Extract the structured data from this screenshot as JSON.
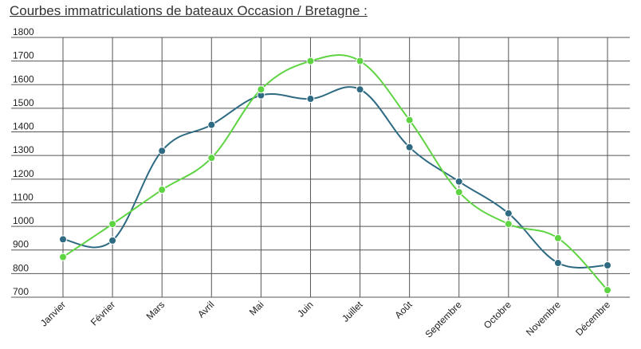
{
  "title": "Courbes immatriculations de bateaux Occasion / Bretagne :",
  "chart_data": {
    "type": "line",
    "title": "Courbes immatriculations de bateaux Occasion / Bretagne :",
    "xlabel": "",
    "ylabel": "",
    "categories": [
      "Janvier",
      "Février",
      "Mars",
      "Avril",
      "Mai",
      "Juin",
      "Juillet",
      "Août",
      "Septembre",
      "Octobre",
      "Novembre",
      "Décembre"
    ],
    "yticks": [
      700,
      800,
      900,
      1000,
      1100,
      1200,
      1300,
      1400,
      1500,
      1600,
      1700,
      1800
    ],
    "ylim": [
      700,
      1800
    ],
    "grid": true,
    "legend": "none",
    "series": [
      {
        "color": "#2e6a82",
        "values": [
          945,
          940,
          1320,
          1430,
          1555,
          1540,
          1580,
          1335,
          1190,
          1055,
          845,
          835
        ]
      },
      {
        "color": "#5fd443",
        "values": [
          870,
          1010,
          1155,
          1290,
          1580,
          1700,
          1700,
          1450,
          1145,
          1010,
          950,
          730
        ]
      }
    ]
  }
}
